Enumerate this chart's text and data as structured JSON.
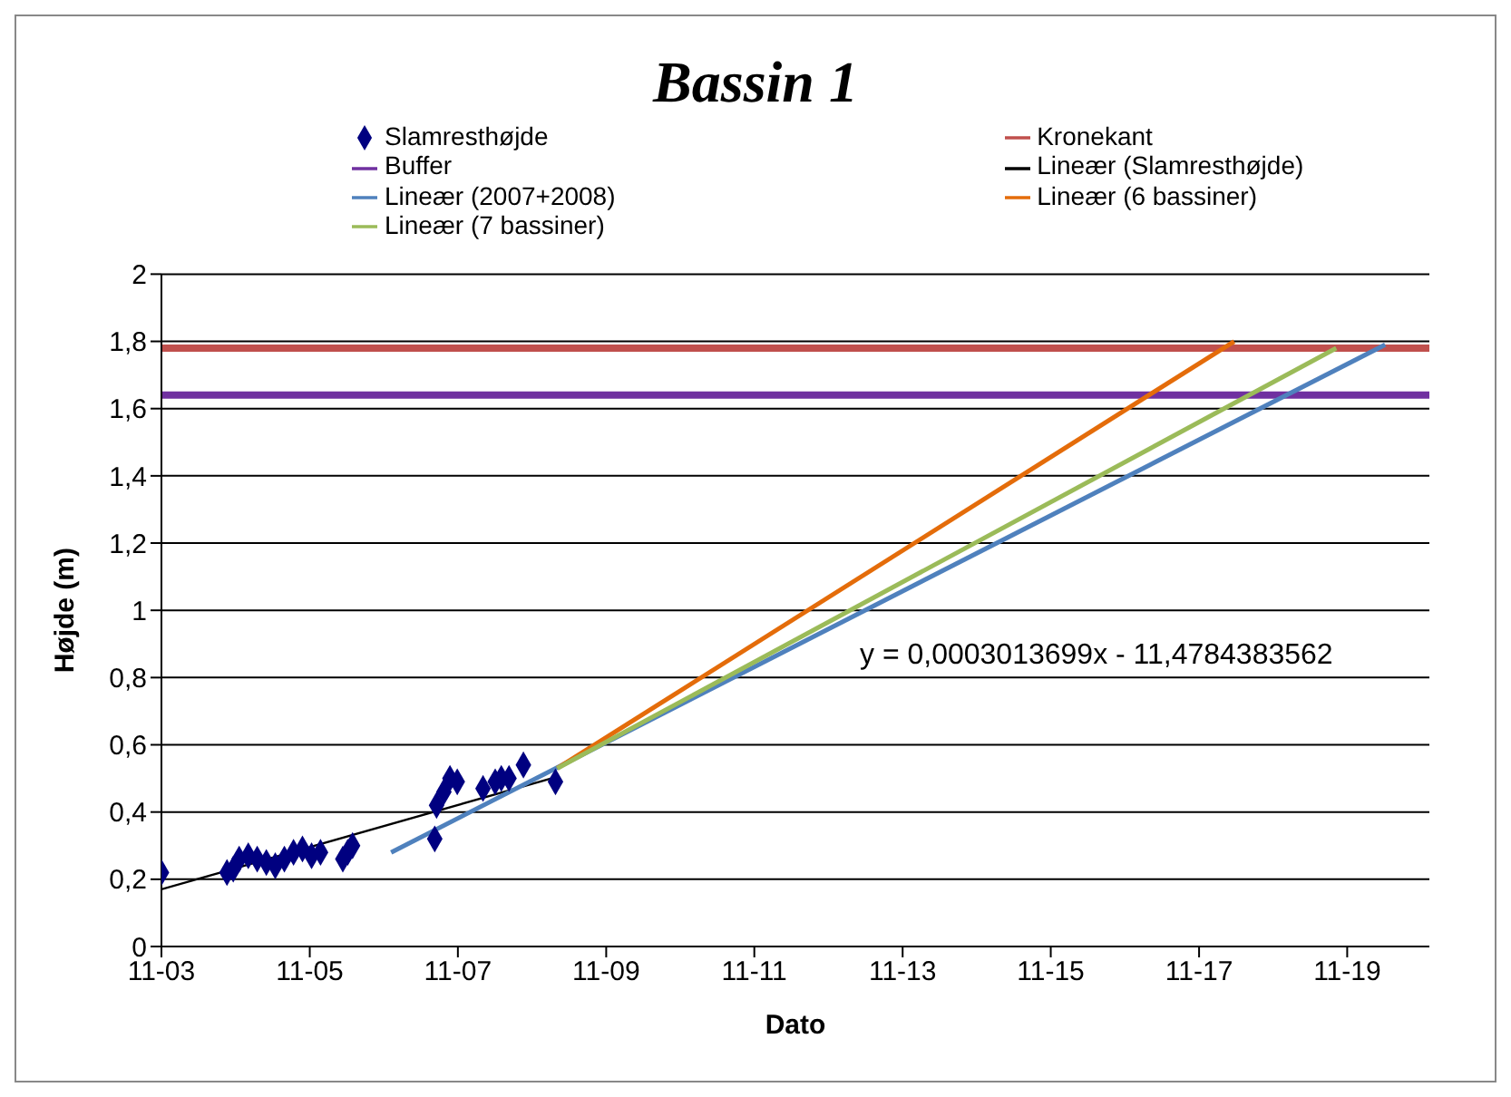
{
  "chart_data": {
    "type": "scatter",
    "title": "Bassin 1",
    "xlabel": "Dato",
    "ylabel": "Højde (m)",
    "annotations": [
      "y = 0,0003013699x - 11,4784383562"
    ],
    "xlim": [
      "2003-11-01",
      "2020-12-10"
    ],
    "xticks": [
      {
        "value": "2003-11-01",
        "label": "11-03"
      },
      {
        "value": "2005-11-01",
        "label": "11-05"
      },
      {
        "value": "2007-11-01",
        "label": "11-07"
      },
      {
        "value": "2009-11-01",
        "label": "11-09"
      },
      {
        "value": "2011-11-01",
        "label": "11-11"
      },
      {
        "value": "2013-11-01",
        "label": "11-13"
      },
      {
        "value": "2015-11-01",
        "label": "11-15"
      },
      {
        "value": "2017-11-01",
        "label": "11-17"
      },
      {
        "value": "2019-11-01",
        "label": "11-19"
      }
    ],
    "ylim": [
      0,
      2
    ],
    "yticks": [
      {
        "value": 0,
        "label": "0"
      },
      {
        "value": 0.2,
        "label": "0,2"
      },
      {
        "value": 0.4,
        "label": "0,4"
      },
      {
        "value": 0.6,
        "label": "0,6"
      },
      {
        "value": 0.8,
        "label": "0,8"
      },
      {
        "value": 1,
        "label": "1"
      },
      {
        "value": 1.2,
        "label": "1,2"
      },
      {
        "value": 1.4,
        "label": "1,4"
      },
      {
        "value": 1.6,
        "label": "1,6"
      },
      {
        "value": 1.8,
        "label": "1,8"
      },
      {
        "value": 2,
        "label": "2"
      }
    ],
    "grid": "y",
    "legend": "top",
    "series": [
      {
        "name": "Slamresthøjde",
        "marker": "diamond",
        "color": "#000080",
        "x": [
          "2003-11-01",
          "2004-09-19",
          "2004-10-20",
          "2004-11-18",
          "2005-01-02",
          "2005-02-15",
          "2005-04-01",
          "2005-05-15",
          "2005-06-29",
          "2005-08-13",
          "2005-09-26",
          "2005-11-10",
          "2005-12-24",
          "2006-04-13",
          "2006-05-07",
          "2006-05-31",
          "2007-07-10",
          "2007-07-19",
          "2007-08-24",
          "2007-09-23",
          "2007-10-29",
          "2008-03-04",
          "2008-05-03",
          "2008-06-02",
          "2008-07-10",
          "2008-09-19",
          "2009-02-24"
        ],
        "values": [
          0.22,
          0.22,
          0.23,
          0.26,
          0.27,
          0.26,
          0.25,
          0.24,
          0.26,
          0.28,
          0.29,
          0.27,
          0.28,
          0.26,
          0.28,
          0.3,
          0.32,
          0.42,
          0.46,
          0.5,
          0.49,
          0.47,
          0.49,
          0.5,
          0.5,
          0.54,
          0.49
        ]
      },
      {
        "name": "Kronekant",
        "type": "line",
        "color": "#c0504d",
        "x": [
          "2003-11-01",
          "2020-12-10"
        ],
        "values": [
          1.78,
          1.78
        ]
      },
      {
        "name": "Buffer",
        "type": "line",
        "color": "#7030a0",
        "x": [
          "2003-11-01",
          "2020-12-10"
        ],
        "values": [
          1.64,
          1.64
        ]
      },
      {
        "name": "Lineær (Slamresthøjde)",
        "type": "line",
        "color": "#000000",
        "x": [
          "2003-11-01",
          "2009-02-03"
        ],
        "values": [
          0.17,
          0.5
        ]
      },
      {
        "name": "Lineær (2007+2008)",
        "type": "line",
        "color": "#4f81bd",
        "x": [
          "2006-12-07",
          "2020-05-06"
        ],
        "values": [
          0.28,
          1.79
        ]
      },
      {
        "name": "Lineær (6 bassiner)",
        "type": "line",
        "color": "#e46c0a",
        "x": [
          "2009-03-05",
          "2018-04-23"
        ],
        "values": [
          0.53,
          1.8
        ]
      },
      {
        "name": "Lineær (7 bassiner)",
        "type": "line",
        "color": "#9bbb59",
        "x": [
          "2009-03-05",
          "2019-09-08"
        ],
        "values": [
          0.53,
          1.78
        ]
      }
    ]
  }
}
